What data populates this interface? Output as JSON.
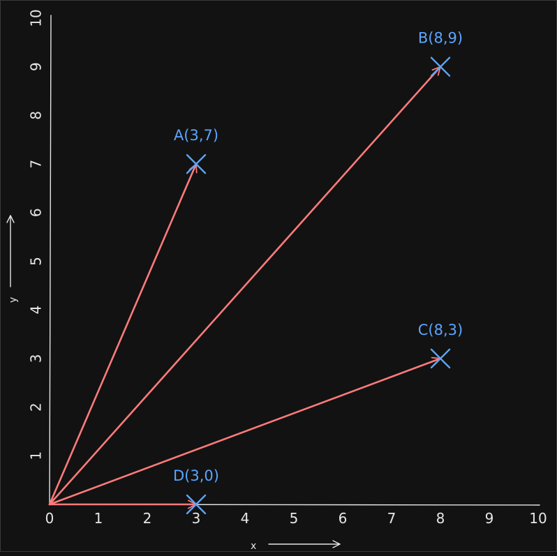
{
  "chart_data": {
    "type": "scatter",
    "title": "",
    "xlabel": "x",
    "ylabel": "y",
    "xlim": [
      0,
      10
    ],
    "ylim": [
      0,
      10
    ],
    "grid": false,
    "x_ticks": [
      "0",
      "1",
      "2",
      "3",
      "4",
      "5",
      "6",
      "7",
      "8",
      "9",
      "10"
    ],
    "y_ticks": [
      "1",
      "2",
      "3",
      "4",
      "5",
      "6",
      "7",
      "8",
      "9",
      "10"
    ],
    "points": [
      {
        "label": "A(3,7)",
        "x": 3,
        "y": 7
      },
      {
        "label": "B(8,9)",
        "x": 8,
        "y": 9
      },
      {
        "label": "C(8,3)",
        "x": 8,
        "y": 3
      },
      {
        "label": "D(3,0)",
        "x": 3,
        "y": 0
      }
    ],
    "vectors_from_origin": [
      "A(3,7)",
      "B(8,9)",
      "C(8,3)",
      "D(3,0)"
    ],
    "colors": {
      "background": "#121212",
      "axes": "#e6e6e6",
      "points": "#5aa6ff",
      "vectors": "#ff7b7b"
    }
  }
}
